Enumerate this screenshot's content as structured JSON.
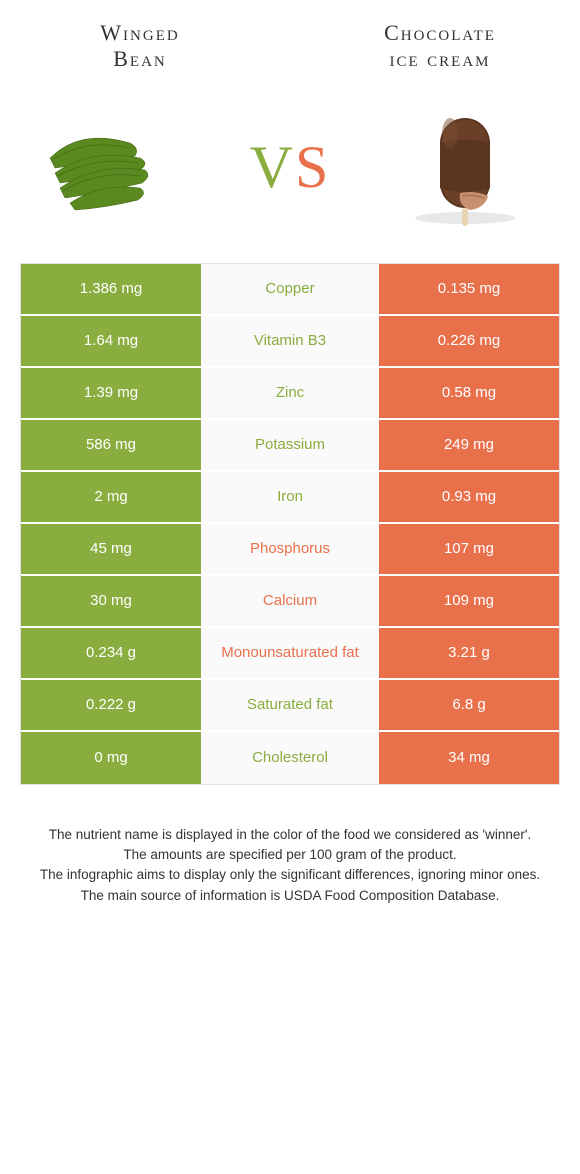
{
  "foods": {
    "left": {
      "title_line1": "Winged",
      "title_line2": "Bean"
    },
    "right": {
      "title_line1": "Chocolate",
      "title_line2": "ice cream"
    }
  },
  "vs": {
    "v": "V",
    "s": "S"
  },
  "colors": {
    "green": "#8aad3f",
    "orange": "#e8714b"
  },
  "rows": [
    {
      "nutrient": "Copper",
      "left": "1.386 mg",
      "right": "0.135 mg",
      "winner": "green"
    },
    {
      "nutrient": "Vitamin B3",
      "left": "1.64 mg",
      "right": "0.226 mg",
      "winner": "green"
    },
    {
      "nutrient": "Zinc",
      "left": "1.39 mg",
      "right": "0.58 mg",
      "winner": "green"
    },
    {
      "nutrient": "Potassium",
      "left": "586 mg",
      "right": "249 mg",
      "winner": "green"
    },
    {
      "nutrient": "Iron",
      "left": "2 mg",
      "right": "0.93 mg",
      "winner": "green"
    },
    {
      "nutrient": "Phosphorus",
      "left": "45 mg",
      "right": "107 mg",
      "winner": "orange"
    },
    {
      "nutrient": "Calcium",
      "left": "30 mg",
      "right": "109 mg",
      "winner": "orange"
    },
    {
      "nutrient": "Monounsaturated fat",
      "left": "0.234 g",
      "right": "3.21 g",
      "winner": "orange"
    },
    {
      "nutrient": "Saturated fat",
      "left": "0.222 g",
      "right": "6.8 g",
      "winner": "green"
    },
    {
      "nutrient": "Cholesterol",
      "left": "0 mg",
      "right": "34 mg",
      "winner": "green"
    }
  ],
  "footer": {
    "l1": "The nutrient name is displayed in the color of the food we considered as 'winner'.",
    "l2": "The amounts are specified per 100 gram of the product.",
    "l3": "The infographic aims to display only the significant differences, ignoring minor ones.",
    "l4": "The main source of information is USDA Food Composition Database."
  }
}
